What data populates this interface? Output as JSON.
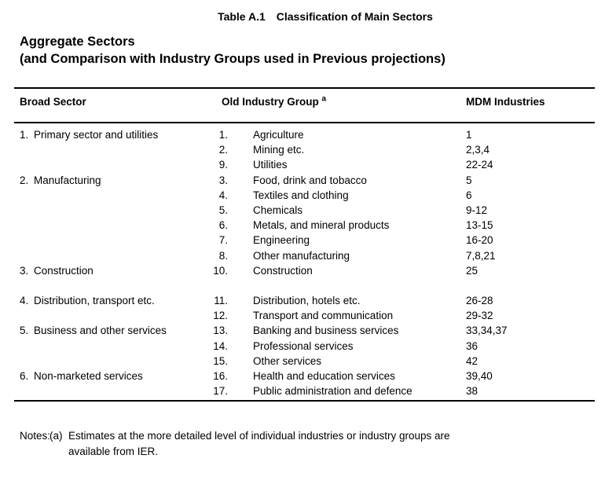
{
  "page": {
    "title": {
      "label": "Table A.1",
      "text": "Classification of Main Sectors"
    },
    "heading": {
      "line1": "Aggregate Sectors",
      "line2": "(and Comparison with Industry Groups used in Previous projections)"
    }
  },
  "table": {
    "columns": {
      "broad_sector": "Broad Sector",
      "old_industry_group": "Old Industry Group",
      "old_industry_group_note_ref": "a",
      "mdm_industries": "MDM Industries"
    },
    "rows": [
      {
        "broad_no": "1.",
        "broad": "Primary sector and utilities",
        "group_no": "1.",
        "group": "Agriculture",
        "mdm": "1"
      },
      {
        "broad_no": "",
        "broad": "",
        "group_no": "2.",
        "group": "Mining etc.",
        "mdm": "2,3,4"
      },
      {
        "broad_no": "",
        "broad": "",
        "group_no": "9.",
        "group": "Utilities",
        "mdm": "22-24"
      },
      {
        "broad_no": "2.",
        "broad": "Manufacturing",
        "group_no": "3.",
        "group": "Food, drink and tobacco",
        "mdm": "5"
      },
      {
        "broad_no": "",
        "broad": "",
        "group_no": "4.",
        "group": "Textiles and clothing",
        "mdm": "6"
      },
      {
        "broad_no": "",
        "broad": "",
        "group_no": "5.",
        "group": "Chemicals",
        "mdm": "9-12"
      },
      {
        "broad_no": "",
        "broad": "",
        "group_no": "6.",
        "group": "Metals, and mineral products",
        "mdm": "13-15"
      },
      {
        "broad_no": "",
        "broad": "",
        "group_no": "7.",
        "group": "Engineering",
        "mdm": "16-20"
      },
      {
        "broad_no": "",
        "broad": "",
        "group_no": "8.",
        "group": "Other manufacturing",
        "mdm": "7,8,21"
      },
      {
        "broad_no": "3.",
        "broad": "Construction",
        "group_no": "10.",
        "group": "Construction",
        "mdm": "25"
      },
      {
        "blank": true,
        "broad_no": "",
        "broad": "",
        "group_no": "",
        "group": "",
        "mdm": ""
      },
      {
        "broad_no": "4.",
        "broad": "Distribution, transport etc.",
        "group_no": "11.",
        "group": "Distribution, hotels etc.",
        "mdm": "26-28"
      },
      {
        "broad_no": "",
        "broad": "",
        "group_no": "12.",
        "group": "Transport and communication",
        "mdm": "29-32"
      },
      {
        "broad_no": "5.",
        "broad": "Business and other services",
        "group_no": "13.",
        "group": "Banking and business services",
        "mdm": "33,34,37"
      },
      {
        "broad_no": "",
        "broad": "",
        "group_no": "14.",
        "group": "Professional services",
        "mdm": "36"
      },
      {
        "broad_no": "",
        "broad": "",
        "group_no": "15.",
        "group": "Other services",
        "mdm": "42"
      },
      {
        "broad_no": "6.",
        "broad": "Non-marketed services",
        "group_no": "16.",
        "group": "Health and education services",
        "mdm": "39,40"
      },
      {
        "broad_no": "",
        "broad": "",
        "group_no": "17.",
        "group": "Public administration and defence",
        "mdm": "38"
      }
    ]
  },
  "notes": {
    "label": "Notes:",
    "marker": "(a)",
    "lines": [
      "Estimates at the more detailed level of individual industries or industry groups are",
      "available from IER."
    ]
  }
}
